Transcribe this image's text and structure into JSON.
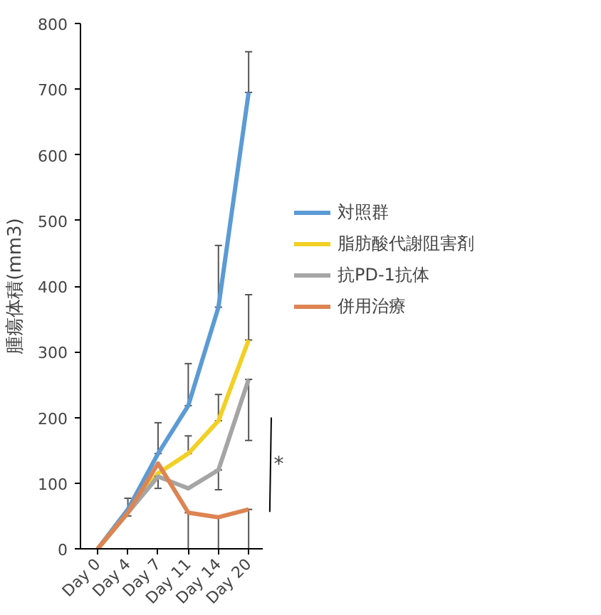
{
  "chart_data": {
    "type": "line",
    "ylabel": "腫瘍体積(mm3)",
    "categories": [
      "Day 0",
      "Day 4",
      "Day 7",
      "Day 11",
      "Day 14",
      "Day 20"
    ],
    "ylim": [
      0,
      800
    ],
    "yticks": [
      0,
      100,
      200,
      300,
      400,
      500,
      600,
      700,
      800
    ],
    "grid": false,
    "legend": "right",
    "annotations": [
      "*"
    ],
    "series": [
      {
        "name": "対照群",
        "color": "#5b9bd5",
        "values": [
          0,
          60,
          145,
          218,
          368,
          695
        ],
        "errors": [
          null,
          [
            50,
            77
          ],
          [
            145,
            192
          ],
          [
            218,
            282
          ],
          [
            368,
            462
          ],
          [
            695,
            757
          ]
        ]
      },
      {
        "name": "脂肪酸代謝阻害剤",
        "color": "#f2d024",
        "values": [
          0,
          55,
          115,
          145,
          195,
          318
        ],
        "errors": [
          null,
          null,
          null,
          [
            145,
            172
          ],
          [
            195,
            235
          ],
          [
            318,
            387
          ]
        ]
      },
      {
        "name": "抗PD-1抗体",
        "color": "#a5a5a5",
        "values": [
          0,
          55,
          110,
          92,
          120,
          258
        ],
        "errors": [
          null,
          null,
          [
            92,
            110
          ],
          null,
          [
            90,
            120
          ],
          [
            165,
            258
          ]
        ]
      },
      {
        "name": "併用治療",
        "color": "#dd8452",
        "values": [
          0,
          55,
          130,
          55,
          48,
          60
        ],
        "errors": [
          null,
          null,
          null,
          [
            0,
            55
          ],
          [
            0,
            48
          ],
          [
            0,
            60
          ]
        ]
      }
    ]
  }
}
